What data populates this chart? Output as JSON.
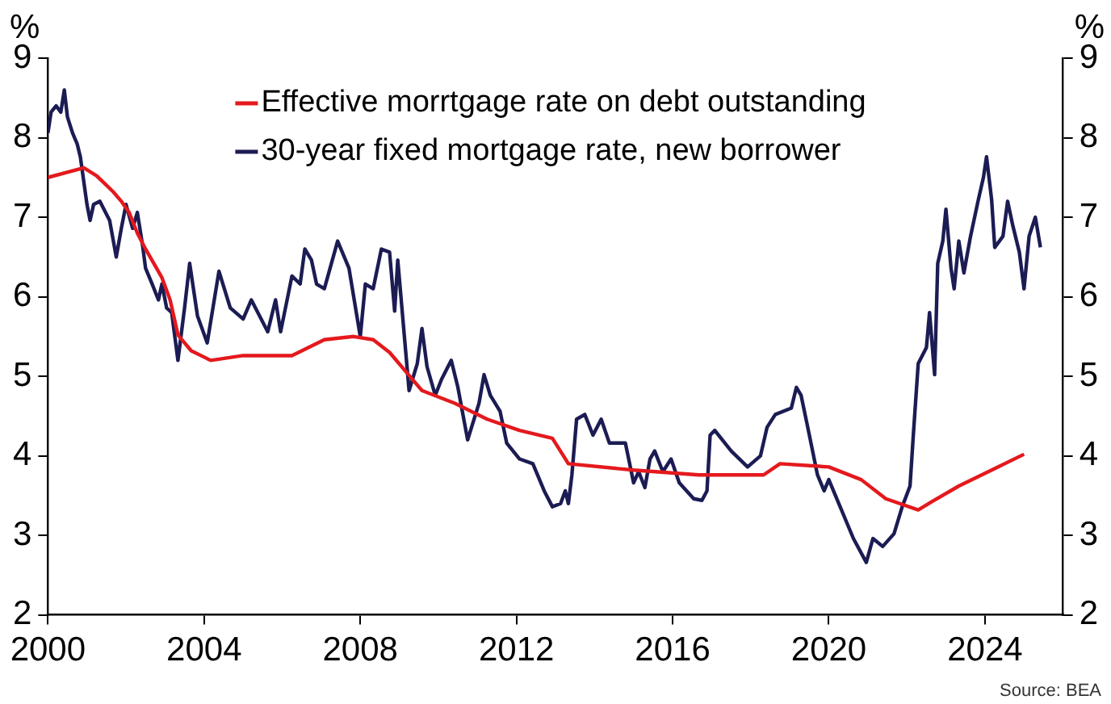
{
  "chart_data": {
    "type": "line",
    "ylabel": "%",
    "y2label": "%",
    "xlim": [
      2000,
      2026
    ],
    "xticks": [
      2000,
      2004,
      2008,
      2012,
      2016,
      2020,
      2024
    ],
    "ylim": [
      2,
      9
    ],
    "yticks": [
      2,
      3,
      4,
      5,
      6,
      7,
      8,
      9
    ],
    "y2lim": [
      2,
      9
    ],
    "y2ticks": [
      2,
      3,
      4,
      5,
      6,
      7,
      8,
      9
    ],
    "grid": false,
    "legend": "top",
    "marker": "none",
    "line_style": "solid",
    "annotations": [
      "Source: BEA"
    ],
    "series": [
      {
        "name": "Effective morrtgage rate on debt outstanding",
        "color": "#e4191d",
        "x": [
          2000.0,
          2000.92,
          2001.25,
          2001.46,
          2001.67,
          2001.88,
          2002.08,
          2002.29,
          2002.5,
          2002.71,
          2002.92,
          2003.13,
          2003.33,
          2003.67,
          2004.17,
          2005.0,
          2006.25,
          2006.67,
          2007.08,
          2007.83,
          2008.33,
          2008.75,
          2009.58,
          2010.42,
          2011.25,
          2012.08,
          2012.92,
          2013.33,
          2015.0,
          2016.67,
          2018.33,
          2018.75,
          2020.0,
          2020.83,
          2021.46,
          2022.29,
          2022.63,
          2023.33,
          2024.17,
          2025.0
        ],
        "values": [
          7.5,
          7.62,
          7.52,
          7.42,
          7.32,
          7.2,
          7.06,
          6.8,
          6.6,
          6.42,
          6.24,
          5.96,
          5.52,
          5.32,
          5.2,
          5.26,
          5.26,
          5.36,
          5.46,
          5.5,
          5.46,
          5.3,
          4.82,
          4.66,
          4.46,
          4.32,
          4.22,
          3.9,
          3.82,
          3.76,
          3.76,
          3.9,
          3.86,
          3.7,
          3.46,
          3.32,
          3.42,
          3.62,
          3.82,
          4.02
        ]
      },
      {
        "name": "30-year fixed mortgage rate, new borrower",
        "color": "#1c1c54",
        "x": [
          2000.0,
          2000.08,
          2000.21,
          2000.33,
          2000.42,
          2000.5,
          2000.63,
          2000.75,
          2000.83,
          2001.0,
          2001.08,
          2001.17,
          2001.33,
          2001.58,
          2001.75,
          2001.88,
          2002.0,
          2002.17,
          2002.29,
          2002.42,
          2002.5,
          2002.67,
          2002.83,
          2002.92,
          2003.04,
          2003.17,
          2003.33,
          2003.5,
          2003.63,
          2003.83,
          2004.08,
          2004.38,
          2004.67,
          2005.0,
          2005.21,
          2005.42,
          2005.63,
          2005.83,
          2005.96,
          2006.25,
          2006.46,
          2006.58,
          2006.75,
          2006.88,
          2007.08,
          2007.42,
          2007.71,
          2008.0,
          2008.13,
          2008.33,
          2008.54,
          2008.75,
          2008.88,
          2008.96,
          2009.25,
          2009.46,
          2009.58,
          2009.71,
          2009.92,
          2010.08,
          2010.33,
          2010.5,
          2010.75,
          2011.04,
          2011.17,
          2011.33,
          2011.58,
          2011.75,
          2012.08,
          2012.42,
          2012.71,
          2012.92,
          2013.13,
          2013.25,
          2013.33,
          2013.42,
          2013.54,
          2013.75,
          2013.96,
          2014.17,
          2014.38,
          2014.79,
          2015.0,
          2015.13,
          2015.29,
          2015.42,
          2015.54,
          2015.75,
          2015.96,
          2016.17,
          2016.54,
          2016.75,
          2016.88,
          2016.96,
          2017.08,
          2017.5,
          2017.92,
          2018.25,
          2018.42,
          2018.63,
          2019.04,
          2019.17,
          2019.29,
          2019.46,
          2019.71,
          2019.88,
          2020.0,
          2020.29,
          2020.63,
          2020.96,
          2021.13,
          2021.38,
          2021.67,
          2021.88,
          2022.08,
          2022.17,
          2022.29,
          2022.5,
          2022.58,
          2022.71,
          2022.79,
          2022.92,
          2023.0,
          2023.13,
          2023.21,
          2023.33,
          2023.46,
          2023.63,
          2023.83,
          2023.96,
          2024.04,
          2024.17,
          2024.25,
          2024.46,
          2024.58,
          2024.71,
          2024.88,
          2025.0,
          2025.13,
          2025.29,
          2025.42
        ],
        "values": [
          8.06,
          8.32,
          8.4,
          8.32,
          8.6,
          8.26,
          8.06,
          7.92,
          7.76,
          7.16,
          6.96,
          7.16,
          7.2,
          6.96,
          6.5,
          6.86,
          7.16,
          6.86,
          7.06,
          6.66,
          6.36,
          6.16,
          5.96,
          6.16,
          5.86,
          5.8,
          5.2,
          5.86,
          6.42,
          5.76,
          5.42,
          6.32,
          5.86,
          5.72,
          5.96,
          5.76,
          5.56,
          5.96,
          5.56,
          6.26,
          6.16,
          6.6,
          6.46,
          6.16,
          6.1,
          6.7,
          6.36,
          5.5,
          6.16,
          6.1,
          6.6,
          6.56,
          5.82,
          6.46,
          4.82,
          5.16,
          5.6,
          5.12,
          4.76,
          4.96,
          5.2,
          4.86,
          4.2,
          4.66,
          5.02,
          4.76,
          4.56,
          4.16,
          3.96,
          3.9,
          3.56,
          3.36,
          3.4,
          3.56,
          3.4,
          3.76,
          4.46,
          4.52,
          4.26,
          4.46,
          4.16,
          4.16,
          3.66,
          3.8,
          3.6,
          3.96,
          4.06,
          3.8,
          3.96,
          3.66,
          3.46,
          3.44,
          3.56,
          4.26,
          4.32,
          4.06,
          3.86,
          4.0,
          4.36,
          4.52,
          4.6,
          4.86,
          4.76,
          4.36,
          3.76,
          3.56,
          3.7,
          3.36,
          2.96,
          2.66,
          2.96,
          2.86,
          3.02,
          3.36,
          3.62,
          4.3,
          5.16,
          5.36,
          5.8,
          5.02,
          6.42,
          6.7,
          7.1,
          6.36,
          6.1,
          6.7,
          6.3,
          6.76,
          7.22,
          7.5,
          7.76,
          7.22,
          6.62,
          6.76,
          7.2,
          6.9,
          6.56,
          6.1,
          6.76,
          7.0,
          6.62
        ]
      }
    ]
  }
}
